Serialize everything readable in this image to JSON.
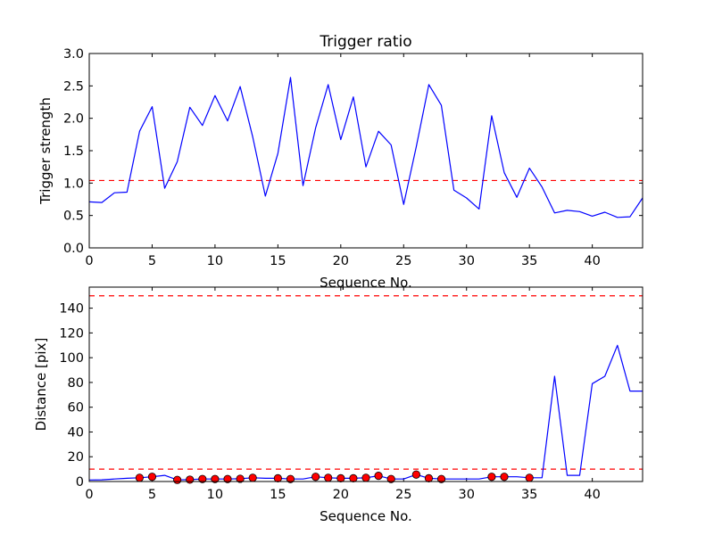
{
  "chart_data": [
    {
      "type": "line",
      "title": "Trigger ratio",
      "xlabel": "Sequence No.",
      "ylabel": "Trigger strength",
      "xlim": [
        0,
        44
      ],
      "ylim": [
        0,
        3.0
      ],
      "xticks": [
        "0",
        "5",
        "10",
        "15",
        "20",
        "25",
        "30",
        "35",
        "40"
      ],
      "yticks": [
        "0.0",
        "0.5",
        "1.0",
        "1.5",
        "2.0",
        "2.5",
        "3.0"
      ],
      "grid": false,
      "series": [
        {
          "color": "#0000ff",
          "x": [
            0,
            1,
            2,
            3,
            4,
            5,
            6,
            7,
            8,
            9,
            10,
            11,
            12,
            13,
            14,
            15,
            16,
            17,
            18,
            19,
            20,
            21,
            22,
            23,
            24,
            25,
            26,
            27,
            28,
            29,
            30,
            31,
            32,
            33,
            34,
            35,
            36,
            37,
            38,
            39,
            40,
            41,
            42,
            43,
            44
          ],
          "y": [
            0.71,
            0.7,
            0.85,
            0.86,
            1.8,
            2.18,
            0.92,
            1.33,
            2.17,
            1.89,
            2.35,
            1.96,
            2.49,
            1.71,
            0.8,
            1.46,
            2.63,
            0.96,
            1.85,
            2.52,
            1.67,
            2.33,
            1.25,
            1.8,
            1.59,
            0.67,
            1.56,
            2.52,
            2.2,
            0.89,
            0.77,
            0.6,
            2.04,
            1.16,
            0.78,
            1.23,
            0.94,
            0.54,
            0.58,
            0.56,
            0.49,
            0.55,
            0.47,
            0.48,
            0.77
          ]
        }
      ],
      "hlines": [
        {
          "y": 1.04,
          "color": "#ff0000",
          "style": "dashed"
        }
      ]
    },
    {
      "type": "line",
      "xlabel": "Sequence No.",
      "ylabel": "Distance [pix]",
      "xlim": [
        0,
        44
      ],
      "ylim": [
        0,
        157
      ],
      "xticks": [
        "0",
        "5",
        "10",
        "15",
        "20",
        "25",
        "30",
        "35",
        "40"
      ],
      "yticks": [
        "0",
        "20",
        "40",
        "60",
        "80",
        "100",
        "120",
        "140"
      ],
      "grid": false,
      "series": [
        {
          "color": "#0000ff",
          "x": [
            0,
            1,
            2,
            3,
            4,
            5,
            6,
            7,
            8,
            9,
            10,
            11,
            12,
            13,
            14,
            15,
            16,
            17,
            18,
            19,
            20,
            21,
            22,
            23,
            24,
            25,
            26,
            27,
            28,
            29,
            30,
            31,
            32,
            33,
            34,
            35,
            36,
            37,
            38,
            39,
            40,
            41,
            42,
            43,
            44
          ],
          "y": [
            1.2,
            1.4,
            2.0,
            2.6,
            3.0,
            3.8,
            5.0,
            1.3,
            1.5,
            2.0,
            2.0,
            2.0,
            2.2,
            3.0,
            2.6,
            2.6,
            2.0,
            2.0,
            3.8,
            3.0,
            2.6,
            2.6,
            3.0,
            4.6,
            2.0,
            2.0,
            5.6,
            2.6,
            2.0,
            2.0,
            2.0,
            2.0,
            3.8,
            3.8,
            3.8,
            3.0,
            3.0,
            85.0,
            5.0,
            5.0,
            79.0,
            85.0,
            110.0,
            73.0,
            73.0
          ]
        },
        {
          "color": "#ff0000",
          "marker": "circle",
          "x": [
            4,
            5,
            7,
            8,
            9,
            10,
            11,
            12,
            13,
            15,
            16,
            18,
            19,
            20,
            21,
            22,
            23,
            24,
            26,
            27,
            28,
            32,
            33,
            35
          ],
          "y": [
            3.0,
            3.8,
            1.3,
            1.5,
            2.0,
            2.0,
            2.0,
            2.2,
            3.0,
            2.6,
            2.0,
            3.8,
            3.0,
            2.6,
            2.6,
            3.0,
            4.6,
            2.0,
            5.6,
            2.6,
            2.0,
            3.8,
            3.8,
            3.0
          ]
        }
      ],
      "hlines": [
        {
          "y": 150,
          "color": "#ff0000",
          "style": "dashed"
        },
        {
          "y": 10,
          "color": "#ff0000",
          "style": "dashed"
        }
      ]
    }
  ]
}
